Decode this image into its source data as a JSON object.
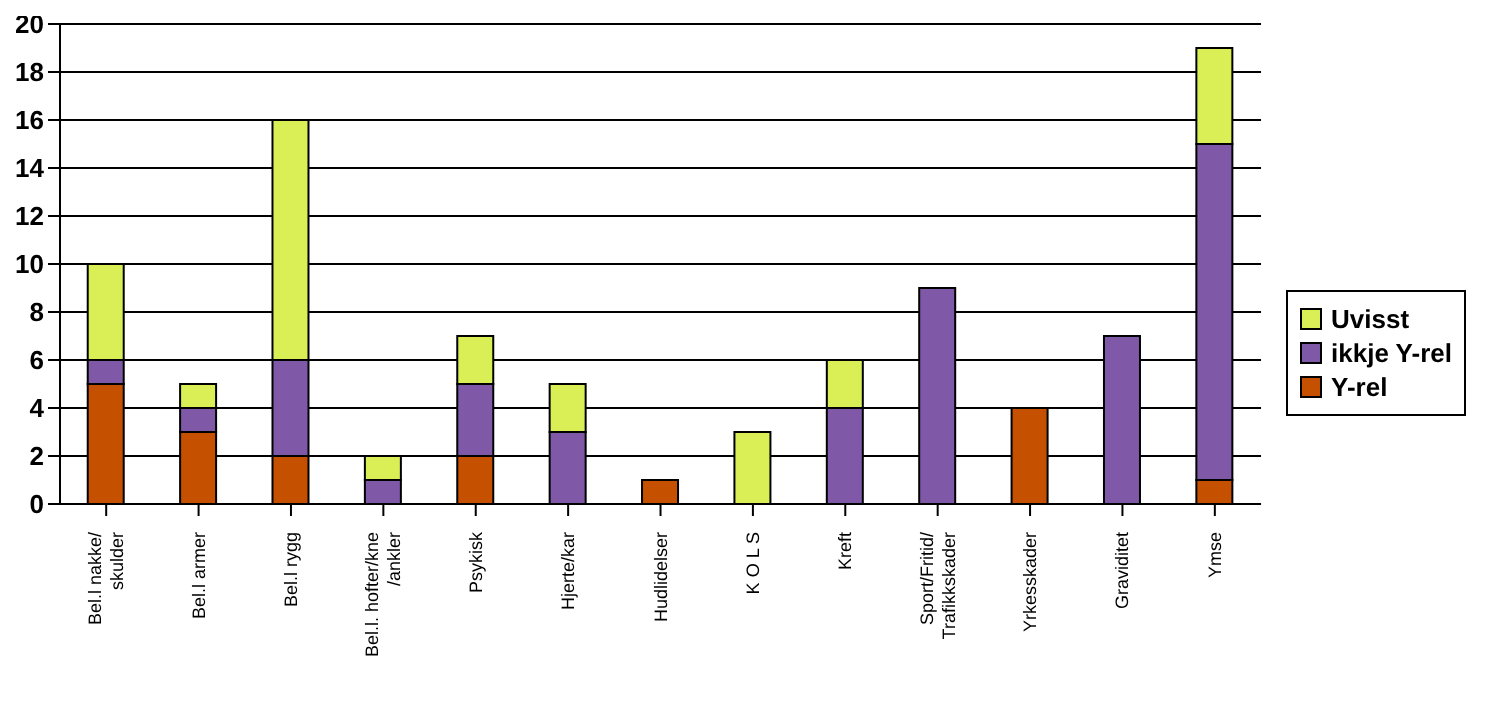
{
  "chart_data": {
    "type": "bar",
    "stacked": true,
    "categories": [
      "Bel.l nakke/\nskulder",
      "Bel.l armer",
      "Bel.l rygg",
      "Bel.l. hofter/kne\n/ankler",
      "Psykisk",
      "Hjerte/kar",
      "Hudlidelser",
      "K O L S",
      "Kreft",
      "Sport/Fritid/\nTrafikkskader",
      "Yrkesskader",
      "Graviditet",
      "Ymse"
    ],
    "series": [
      {
        "name": "Y-rel",
        "color": "#c55000",
        "values": [
          5,
          3,
          2,
          0,
          2,
          0,
          1,
          0,
          0,
          0,
          4,
          0,
          1
        ]
      },
      {
        "name": "ikkje Y-rel",
        "color": "#7f59a8",
        "values": [
          1,
          1,
          4,
          1,
          3,
          3,
          0,
          0,
          4,
          9,
          0,
          7,
          14
        ]
      },
      {
        "name": "Uvisst",
        "color": "#d9ef55",
        "values": [
          4,
          1,
          10,
          1,
          2,
          2,
          0,
          3,
          2,
          0,
          0,
          0,
          4
        ]
      }
    ],
    "ylim": [
      0,
      20
    ],
    "yticks": [
      0,
      2,
      4,
      6,
      8,
      10,
      12,
      14,
      16,
      18,
      20
    ],
    "grid": "y",
    "legend": "right"
  }
}
